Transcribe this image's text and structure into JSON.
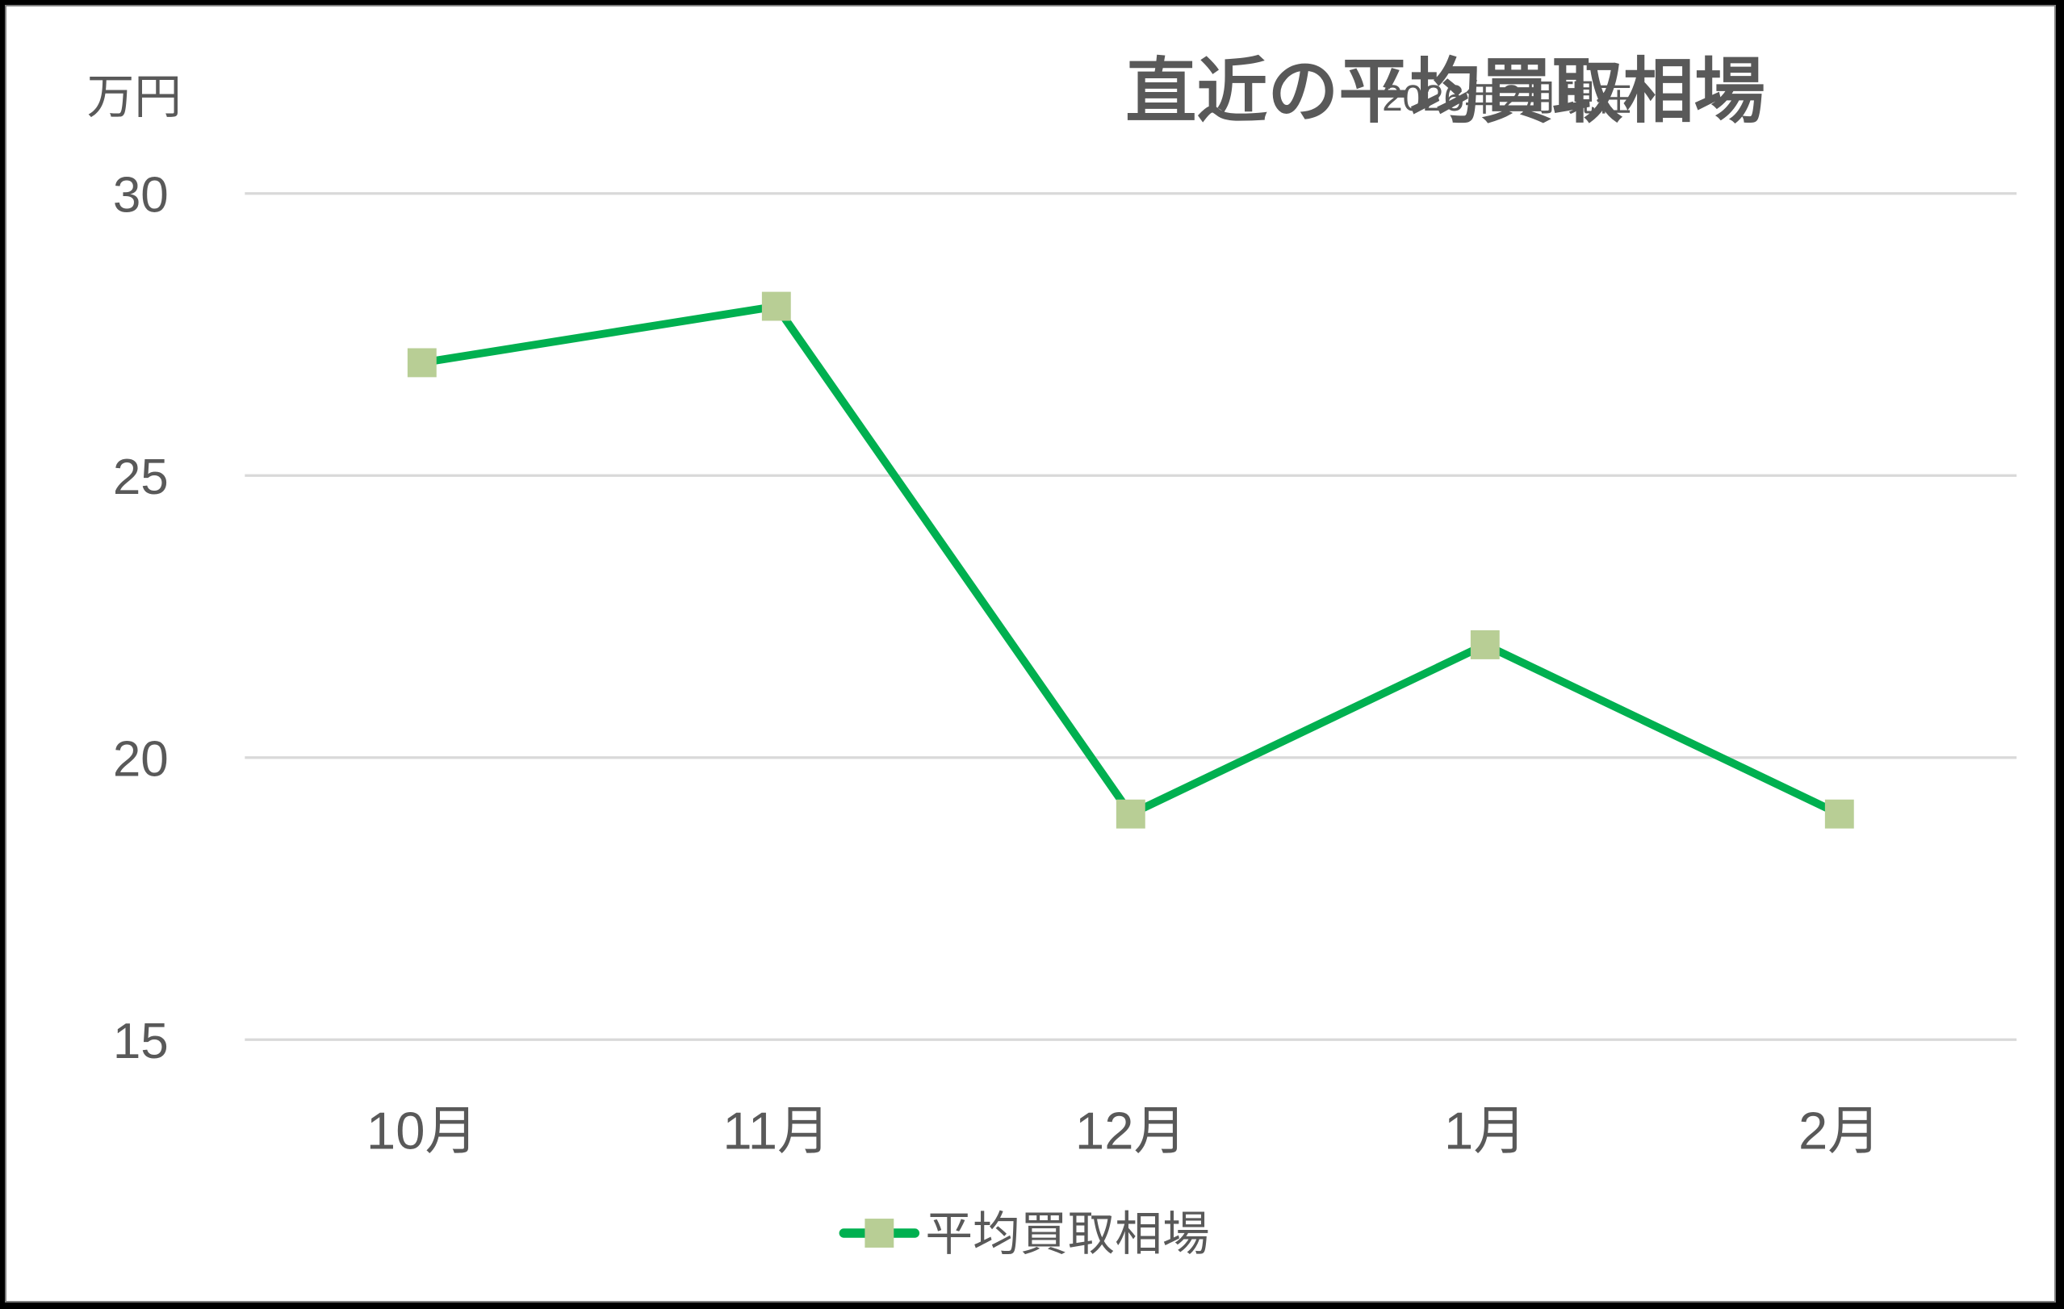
{
  "chart_data": {
    "type": "line",
    "title": "直近の平均買取相場",
    "subtitle": "2026年2月現在",
    "ylabel": "万円",
    "xlabel": "",
    "categories": [
      "10月",
      "11月",
      "12月",
      "1月",
      "2月"
    ],
    "series": [
      {
        "name": "平均買取相場",
        "values": [
          27,
          28,
          19,
          22,
          19
        ],
        "line_color": "#00B050",
        "marker_color": "#B8CE95",
        "marker": "square"
      }
    ],
    "ylim": [
      15,
      30
    ],
    "yticks": [
      15,
      20,
      25,
      30
    ],
    "ytick_labels": [
      "15",
      "20",
      "25",
      "30"
    ],
    "grid": true,
    "legend_position": "bottom"
  },
  "colors": {
    "text": "#595959",
    "grid": "#D9D9D9",
    "line": "#00B050",
    "marker": "#B8CE95"
  }
}
